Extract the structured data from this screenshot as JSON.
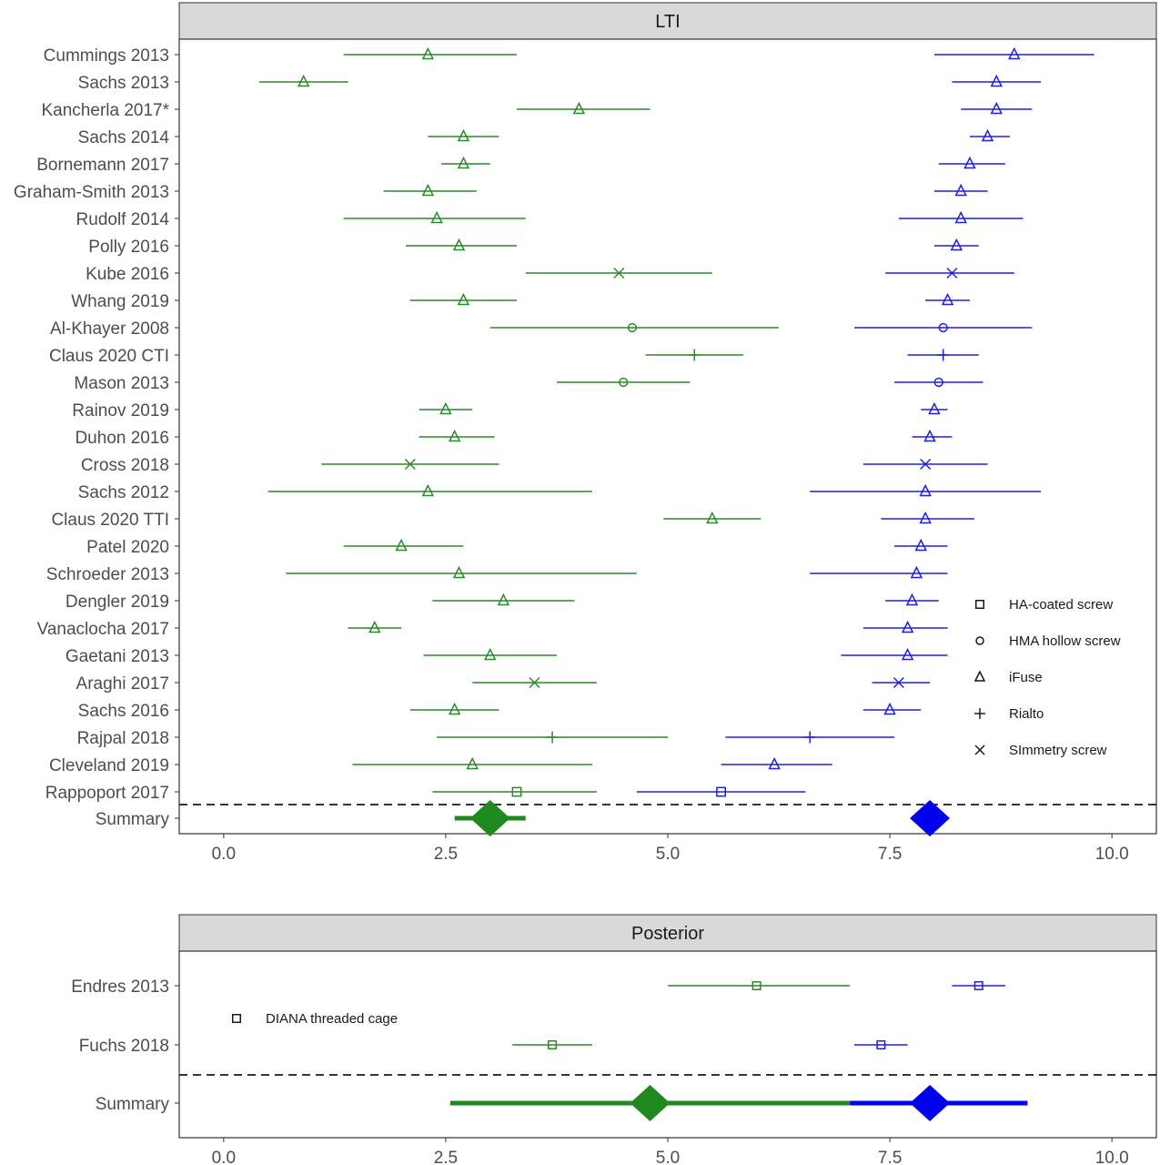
{
  "chart_data": [
    {
      "type": "forest",
      "panel": "LTI",
      "xlim": [
        -0.5,
        10.5
      ],
      "xticks": [
        "0.0",
        "2.5",
        "5.0",
        "7.5",
        "10.0"
      ],
      "colors": {
        "green": "#2a8a2a",
        "blue": "#1f1fe0",
        "summary_green": "#1f8a1f",
        "summary_blue": "#0000ee"
      },
      "legend": [
        {
          "label": "HA-coated screw",
          "marker": "square"
        },
        {
          "label": "HMA hollow screw",
          "marker": "circle"
        },
        {
          "label": "iFuse",
          "marker": "triangle"
        },
        {
          "label": "Rialto",
          "marker": "plus"
        },
        {
          "label": "SImmetry screw",
          "marker": "x"
        }
      ],
      "studies": [
        {
          "label": "Cummings 2013",
          "marker": "triangle",
          "green": [
            1.35,
            2.3,
            3.3
          ],
          "blue": [
            8.0,
            8.9,
            9.8
          ]
        },
        {
          "label": "Sachs 2013",
          "marker": "triangle",
          "green": [
            0.4,
            0.9,
            1.4
          ],
          "blue": [
            8.2,
            8.7,
            9.2
          ]
        },
        {
          "label": "Kancherla 2017*",
          "marker": "triangle",
          "green": [
            3.3,
            4.0,
            4.8
          ],
          "blue": [
            8.3,
            8.7,
            9.1
          ]
        },
        {
          "label": "Sachs 2014",
          "marker": "triangle",
          "green": [
            2.3,
            2.7,
            3.1
          ],
          "blue": [
            8.4,
            8.6,
            8.85
          ]
        },
        {
          "label": "Bornemann 2017",
          "marker": "triangle",
          "green": [
            2.45,
            2.7,
            3.0
          ],
          "blue": [
            8.05,
            8.4,
            8.8
          ]
        },
        {
          "label": "Graham-Smith 2013",
          "marker": "triangle",
          "green": [
            1.8,
            2.3,
            2.85
          ],
          "blue": [
            8.0,
            8.3,
            8.6
          ]
        },
        {
          "label": "Rudolf 2014",
          "marker": "triangle",
          "green": [
            1.35,
            2.4,
            3.4
          ],
          "blue": [
            7.6,
            8.3,
            9.0
          ]
        },
        {
          "label": "Polly 2016",
          "marker": "triangle",
          "green": [
            2.05,
            2.65,
            3.3
          ],
          "blue": [
            8.0,
            8.25,
            8.5
          ]
        },
        {
          "label": "Kube 2016",
          "marker": "x",
          "green": [
            3.4,
            4.45,
            5.5
          ],
          "blue": [
            7.45,
            8.2,
            8.9
          ]
        },
        {
          "label": "Whang 2019",
          "marker": "triangle",
          "green": [
            2.1,
            2.7,
            3.3
          ],
          "blue": [
            7.9,
            8.15,
            8.4
          ]
        },
        {
          "label": "Al-Khayer 2008",
          "marker": "circle",
          "green": [
            3.0,
            4.6,
            6.25
          ],
          "blue": [
            7.1,
            8.1,
            9.1
          ]
        },
        {
          "label": "Claus 2020 CTI",
          "marker": "plus",
          "green": [
            4.75,
            5.3,
            5.85
          ],
          "blue": [
            7.7,
            8.1,
            8.5
          ]
        },
        {
          "label": "Mason 2013",
          "marker": "circle",
          "green": [
            3.75,
            4.5,
            5.25
          ],
          "blue": [
            7.55,
            8.05,
            8.55
          ]
        },
        {
          "label": "Rainov 2019",
          "marker": "triangle",
          "green": [
            2.2,
            2.5,
            2.8
          ],
          "blue": [
            7.85,
            8.0,
            8.15
          ]
        },
        {
          "label": "Duhon 2016",
          "marker": "triangle",
          "green": [
            2.2,
            2.6,
            3.05
          ],
          "blue": [
            7.75,
            7.95,
            8.2
          ]
        },
        {
          "label": "Cross 2018",
          "marker": "x",
          "green": [
            1.1,
            2.1,
            3.1
          ],
          "blue": [
            7.2,
            7.9,
            8.6
          ]
        },
        {
          "label": "Sachs 2012",
          "marker": "triangle",
          "green": [
            0.5,
            2.3,
            4.15
          ],
          "blue": [
            6.6,
            7.9,
            9.2
          ]
        },
        {
          "label": "Claus 2020 TTI",
          "marker": "triangle",
          "green": [
            4.95,
            5.5,
            6.05
          ],
          "blue": [
            7.4,
            7.9,
            8.45
          ]
        },
        {
          "label": "Patel 2020",
          "marker": "triangle",
          "green": [
            1.35,
            2.0,
            2.7
          ],
          "blue": [
            7.55,
            7.85,
            8.15
          ]
        },
        {
          "label": "Schroeder 2013",
          "marker": "triangle",
          "green": [
            0.7,
            2.65,
            4.65
          ],
          "blue": [
            6.6,
            7.8,
            8.15
          ]
        },
        {
          "label": "Dengler 2019",
          "marker": "triangle",
          "green": [
            2.35,
            3.15,
            3.95
          ],
          "blue": [
            7.45,
            7.75,
            8.05
          ]
        },
        {
          "label": "Vanaclocha 2017",
          "marker": "triangle",
          "green": [
            1.4,
            1.7,
            2.0
          ],
          "blue": [
            7.2,
            7.7,
            8.15
          ]
        },
        {
          "label": "Gaetani 2013",
          "marker": "triangle",
          "green": [
            2.25,
            3.0,
            3.75
          ],
          "blue": [
            6.95,
            7.7,
            8.15
          ]
        },
        {
          "label": "Araghi 2017",
          "marker": "x",
          "green": [
            2.8,
            3.5,
            4.2
          ],
          "blue": [
            7.3,
            7.6,
            7.95
          ]
        },
        {
          "label": "Sachs 2016",
          "marker": "triangle",
          "green": [
            2.1,
            2.6,
            3.1
          ],
          "blue": [
            7.2,
            7.5,
            7.85
          ]
        },
        {
          "label": "Rajpal 2018",
          "marker": "plus",
          "green": [
            2.4,
            3.7,
            5.0
          ],
          "blue": [
            5.65,
            6.6,
            7.55
          ]
        },
        {
          "label": "Cleveland 2019",
          "marker": "triangle",
          "green": [
            1.45,
            2.8,
            4.15
          ],
          "blue": [
            5.6,
            6.2,
            6.85
          ]
        },
        {
          "label": "Rappoport 2017",
          "marker": "square",
          "green": [
            2.35,
            3.3,
            4.2
          ],
          "blue": [
            4.65,
            5.6,
            6.55
          ]
        }
      ],
      "summary": {
        "label": "Summary",
        "green": [
          2.6,
          3.0,
          3.4
        ],
        "blue": [
          7.95,
          7.95,
          7.95
        ]
      }
    },
    {
      "type": "forest",
      "panel": "Posterior",
      "xlim": [
        -0.5,
        10.5
      ],
      "xticks": [
        "0.0",
        "2.5",
        "5.0",
        "7.5",
        "10.0"
      ],
      "legend": [
        {
          "label": "DIANA threaded cage",
          "marker": "square"
        }
      ],
      "studies": [
        {
          "label": "Endres 2013",
          "marker": "square",
          "green": [
            5.0,
            6.0,
            7.05
          ],
          "blue": [
            8.2,
            8.5,
            8.8
          ]
        },
        {
          "label": "Fuchs 2018",
          "marker": "square",
          "green": [
            3.25,
            3.7,
            4.15
          ],
          "blue": [
            7.1,
            7.4,
            7.7
          ]
        }
      ],
      "summary": {
        "label": "Summary",
        "green": [
          2.55,
          4.8,
          7.05
        ],
        "blue": [
          7.05,
          7.95,
          9.05
        ]
      }
    }
  ]
}
